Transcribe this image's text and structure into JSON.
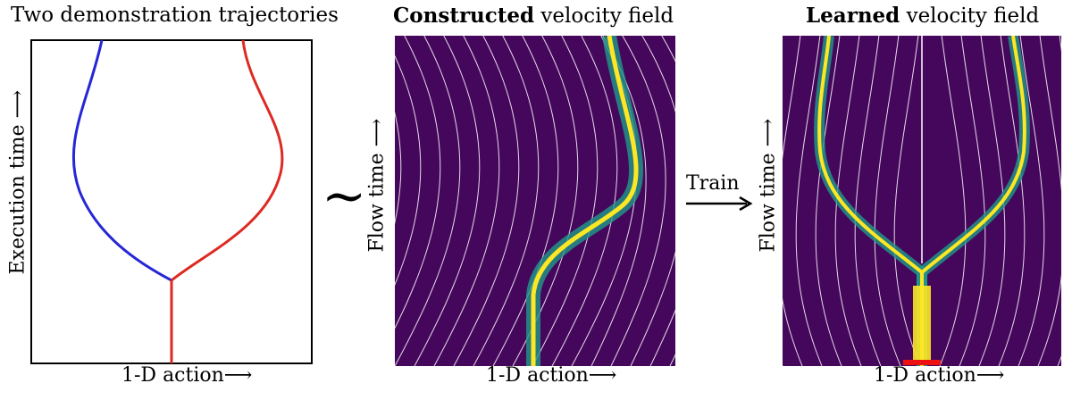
{
  "panels": {
    "left": {
      "title": "Two demonstration trajectories",
      "xlabel": "1-D action",
      "ylabel": "Execution time",
      "colors": {
        "traj_a": "#2626d6",
        "traj_b": "#dd2a22"
      }
    },
    "middle": {
      "title_bold": "Constructed",
      "title_rest": " velocity field",
      "xlabel": "1-D action",
      "ylabel": "Flow time",
      "colors": {
        "background": "#45075c",
        "stream": "#ffffff",
        "density_hi": "#fde725"
      }
    },
    "right": {
      "title_bold": "Learned",
      "title_rest": " velocity field",
      "xlabel": "1-D action",
      "ylabel": "Flow time",
      "colors": {
        "background": "#45075c",
        "stream": "#ffffff",
        "marker": "#ee1111"
      }
    }
  },
  "connectors": {
    "approx_symbol": "~",
    "train_label": "Train"
  },
  "arrows": {
    "glyph": "⟶",
    "up_glyph": "⟶"
  }
}
